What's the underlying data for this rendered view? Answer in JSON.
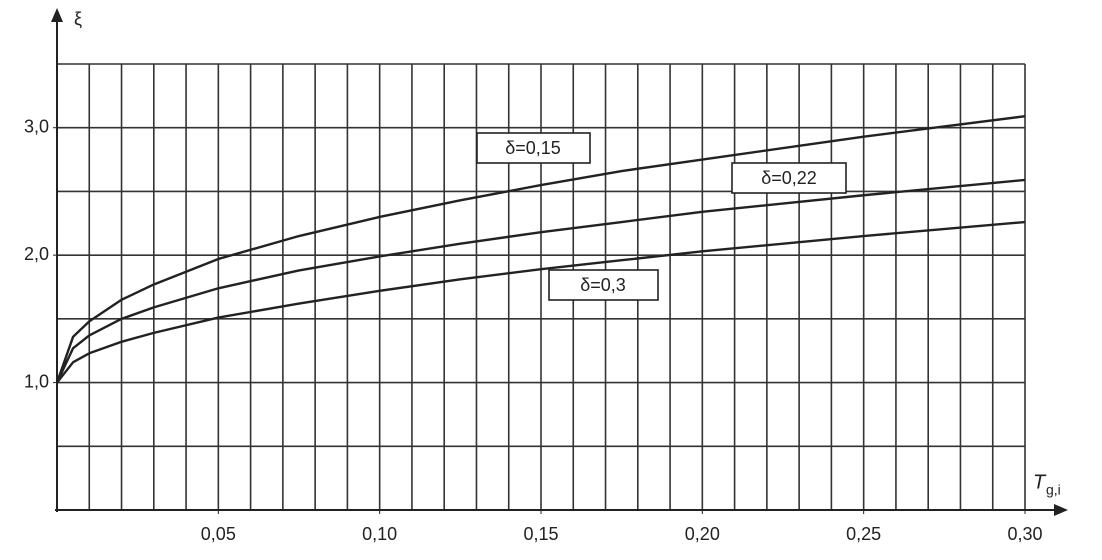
{
  "chart_data": {
    "type": "line",
    "ylabel": "ξ",
    "xlabel": "T",
    "xlabel_sub": "g,i",
    "x": [
      0,
      0.005,
      0.01,
      0.02,
      0.03,
      0.05,
      0.075,
      0.1,
      0.125,
      0.15,
      0.175,
      0.2,
      0.25,
      0.3
    ],
    "series": [
      {
        "name": "δ=0,15",
        "color": "#222222",
        "values": [
          1.0,
          1.36,
          1.48,
          1.65,
          1.77,
          1.97,
          2.15,
          2.3,
          2.43,
          2.55,
          2.66,
          2.75,
          2.93,
          3.09
        ]
      },
      {
        "name": "δ=0,22",
        "color": "#222222",
        "values": [
          1.0,
          1.27,
          1.37,
          1.5,
          1.59,
          1.74,
          1.88,
          1.99,
          2.09,
          2.18,
          2.26,
          2.34,
          2.47,
          2.59
        ]
      },
      {
        "name": "δ=0,3",
        "color": "#222222",
        "values": [
          1.0,
          1.16,
          1.23,
          1.32,
          1.39,
          1.51,
          1.62,
          1.72,
          1.81,
          1.89,
          1.96,
          2.03,
          2.15,
          2.26
        ]
      }
    ],
    "xlim": [
      0,
      0.3
    ],
    "ylim": [
      0,
      3.5
    ],
    "xticks": [
      {
        "value": 0.05,
        "label": "0,05"
      },
      {
        "value": 0.1,
        "label": "0,10"
      },
      {
        "value": 0.15,
        "label": "0,15"
      },
      {
        "value": 0.2,
        "label": "0,20"
      },
      {
        "value": 0.25,
        "label": "0,25"
      },
      {
        "value": 0.3,
        "label": "0,30"
      }
    ],
    "yticks": [
      {
        "value": 1,
        "label": "1,0"
      },
      {
        "value": 2,
        "label": "2,0"
      },
      {
        "value": 3,
        "label": "3,0"
      }
    ],
    "xgrid": [
      0.01,
      0.02,
      0.03,
      0.04,
      0.05,
      0.06,
      0.07,
      0.08,
      0.09,
      0.1,
      0.11,
      0.12,
      0.13,
      0.14,
      0.15,
      0.16,
      0.17,
      0.18,
      0.19,
      0.2,
      0.21,
      0.22,
      0.23,
      0.24,
      0.25,
      0.26,
      0.27,
      0.28,
      0.29,
      0.3
    ],
    "ygrid": [
      0.5,
      1.0,
      1.5,
      2.0,
      2.5,
      3.0,
      3.5
    ],
    "grid": true
  }
}
